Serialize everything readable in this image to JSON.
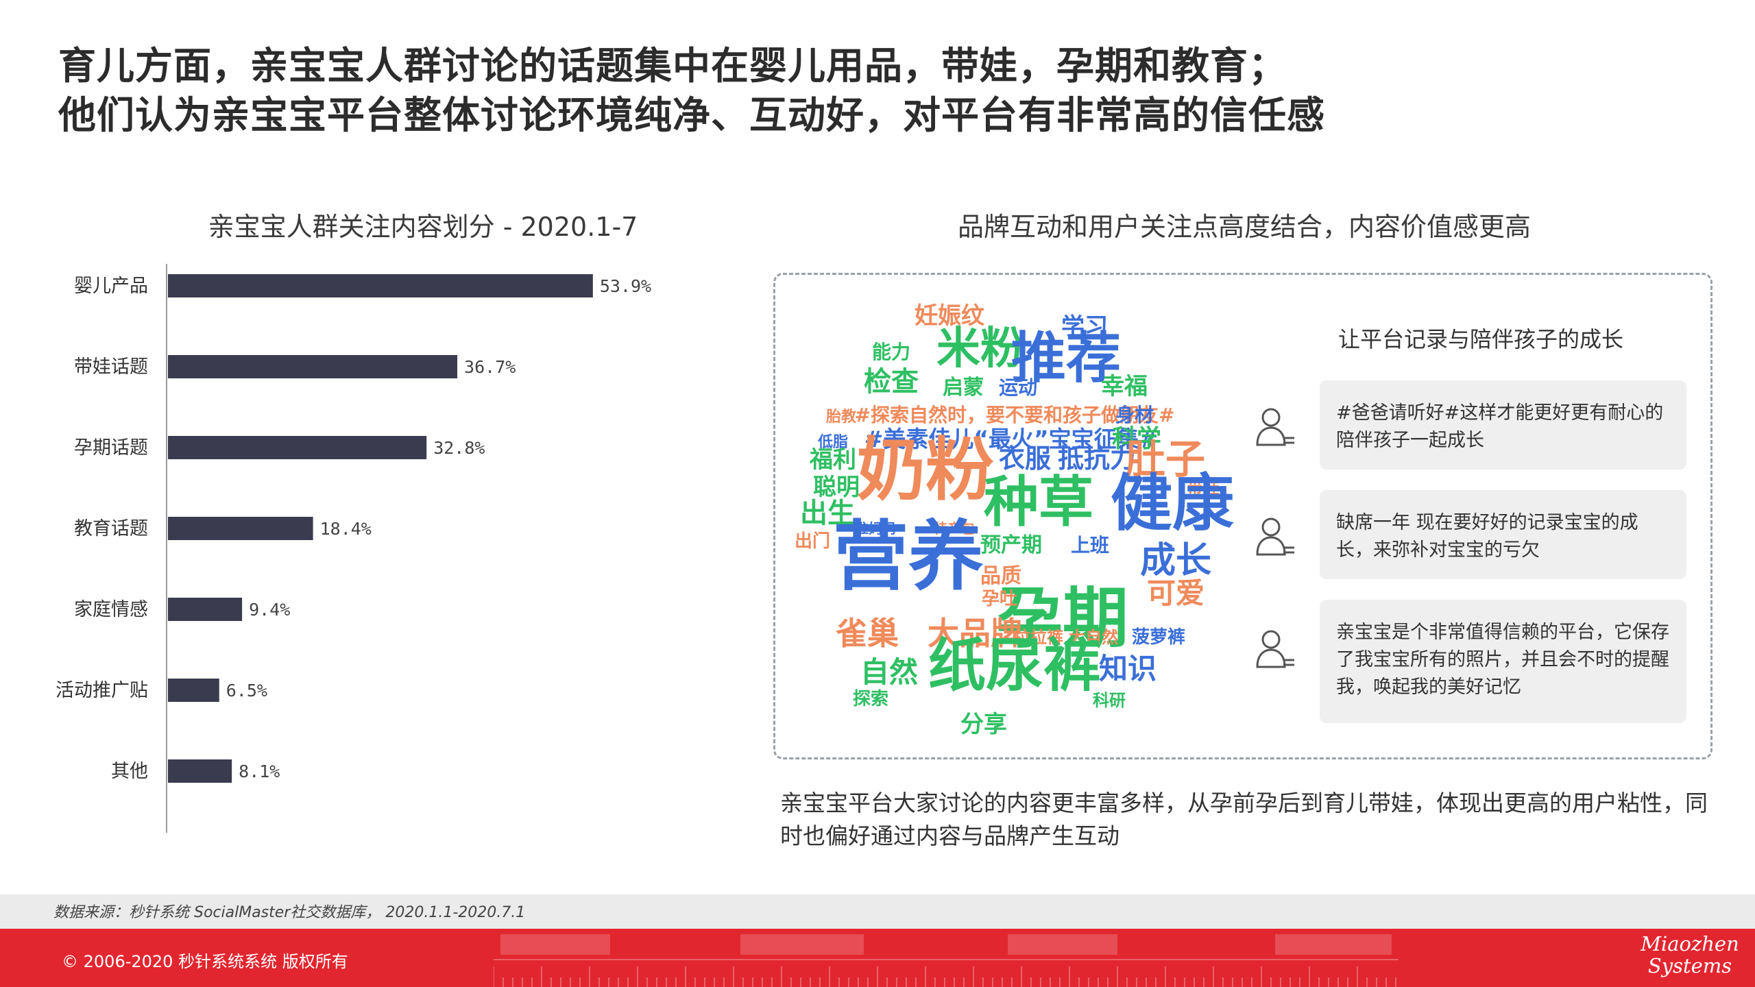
{
  "title": {
    "line1": "育儿方面，亲宝宝人群讨论的话题集中在婴儿用品，带娃，孕期和教育；",
    "line2": "他们认为亲宝宝平台整体讨论环境纯净、互动好，对平台有非常高的信任感"
  },
  "chart_data": {
    "type": "bar",
    "orientation": "horizontal",
    "title": "亲宝宝人群关注内容划分 - 2020.1-7",
    "categories": [
      "婴儿产品",
      "带娃话题",
      "孕期话题",
      "教育话题",
      "家庭情感",
      "活动推广贴",
      "其他"
    ],
    "values": [
      53.9,
      36.7,
      32.8,
      18.4,
      9.4,
      6.5,
      8.1
    ],
    "value_labels": [
      "53.9%",
      "36.7%",
      "32.8%",
      "18.4%",
      "9.4%",
      "6.5%",
      "8.1%"
    ],
    "unit": "%",
    "xlim": [
      0,
      60
    ],
    "bar_color": "#3b3b4f",
    "grid": false
  },
  "word_cloud": {
    "title": "品牌互动和用户关注点高度结合，内容价值感更高",
    "palette": {
      "blue": "#3b6fd8",
      "green": "#2fbf63",
      "orange": "#ef8a5b"
    },
    "words": [
      {
        "text": "妊娠纹",
        "color": "orange",
        "size": 34
      },
      {
        "text": "学习",
        "color": "blue",
        "size": 34
      },
      {
        "text": "能力",
        "color": "green",
        "size": 28
      },
      {
        "text": "米粉",
        "color": "green",
        "size": 64
      },
      {
        "text": "推荐",
        "color": "blue",
        "size": 80
      },
      {
        "text": "检查",
        "color": "green",
        "size": 40
      },
      {
        "text": "启蒙",
        "color": "green",
        "size": 30
      },
      {
        "text": "运动",
        "color": "blue",
        "size": 28
      },
      {
        "text": "幸福",
        "color": "green",
        "size": 34
      },
      {
        "text": "胎教",
        "color": "orange",
        "size": 22
      },
      {
        "text": "#探索自然时，要不要和孩子做朋友#",
        "color": "orange",
        "size": 28
      },
      {
        "text": "身材",
        "color": "blue",
        "size": 28
      },
      {
        "text": "低脂",
        "color": "blue",
        "size": 22
      },
      {
        "text": "#美素佳儿“最火”宝宝征集#",
        "color": "blue",
        "size": 33
      },
      {
        "text": "科学",
        "color": "green",
        "size": 36
      },
      {
        "text": "福利",
        "color": "green",
        "size": 34
      },
      {
        "text": "奶粉",
        "color": "orange",
        "size": 100
      },
      {
        "text": "衣服",
        "color": "blue",
        "size": 38
      },
      {
        "text": "抵抗力",
        "color": "blue",
        "size": 38
      },
      {
        "text": "肚子",
        "color": "orange",
        "size": 58
      },
      {
        "text": "聪明",
        "color": "green",
        "size": 34
      },
      {
        "text": "种草",
        "color": "green",
        "size": 80
      },
      {
        "text": "带娃",
        "color": "orange",
        "size": 24
      },
      {
        "text": "健康",
        "color": "blue",
        "size": 90
      },
      {
        "text": "出生",
        "color": "green",
        "size": 40
      },
      {
        "text": "准妈妈",
        "color": "blue",
        "size": 20
      },
      {
        "text": "待产包",
        "color": "orange",
        "size": 20
      },
      {
        "text": "出门",
        "color": "orange",
        "size": 26
      },
      {
        "text": "营养",
        "color": "blue",
        "size": 110
      },
      {
        "text": "预产期",
        "color": "green",
        "size": 30
      },
      {
        "text": "上班",
        "color": "blue",
        "size": 28
      },
      {
        "text": "品质",
        "color": "orange",
        "size": 30
      },
      {
        "text": "孕期",
        "color": "green",
        "size": 96
      },
      {
        "text": "成长",
        "color": "blue",
        "size": 52
      },
      {
        "text": "孕吐",
        "color": "orange",
        "size": 26
      },
      {
        "text": "可爱",
        "color": "orange",
        "size": 42
      },
      {
        "text": "雀巢",
        "color": "orange",
        "size": 46
      },
      {
        "text": "大品牌",
        "color": "orange",
        "size": 46
      },
      {
        "text": "拉拉裤",
        "color": "orange",
        "size": 24
      },
      {
        "text": "大自然",
        "color": "orange",
        "size": 24
      },
      {
        "text": "菠萝裤",
        "color": "blue",
        "size": 26
      },
      {
        "text": "自然",
        "color": "green",
        "size": 42
      },
      {
        "text": "纸尿裤",
        "color": "green",
        "size": 84
      },
      {
        "text": "知识",
        "color": "blue",
        "size": 42
      },
      {
        "text": "探索",
        "color": "green",
        "size": 26
      },
      {
        "text": "科研",
        "color": "green",
        "size": 24
      },
      {
        "text": "分享",
        "color": "green",
        "size": 34
      }
    ]
  },
  "comments": {
    "title": "让平台记录与陪伴孩子的成长",
    "icon": "user-icon",
    "items": [
      {
        "text": "#爸爸请听好#这样才能更好更有耐心的陪伴孩子一起成长"
      },
      {
        "text": "缺席一年 现在要好好的记录宝宝的成长，来弥补对宝宝的亏欠"
      },
      {
        "text": "亲宝宝是个非常值得信赖的平台，它保存了我宝宝所有的照片，并且会不时的提醒我，唤起我的美好记忆"
      }
    ]
  },
  "description": "亲宝宝平台大家讨论的内容更丰富多样，从孕前孕后到育儿带娃，体现出更高的用户粘性，同时也偏好通过内容与品牌产生互动",
  "source": "数据来源：秒针系统 SocialMaster社交数据库， 2020.1.1-2020.7.1",
  "footer": {
    "copyright": "© 2006-2020 秒针系统系统 版权所有",
    "logo_line1": "Miaozhen",
    "logo_line2": "Systems",
    "bg_color": "#e2262f"
  }
}
